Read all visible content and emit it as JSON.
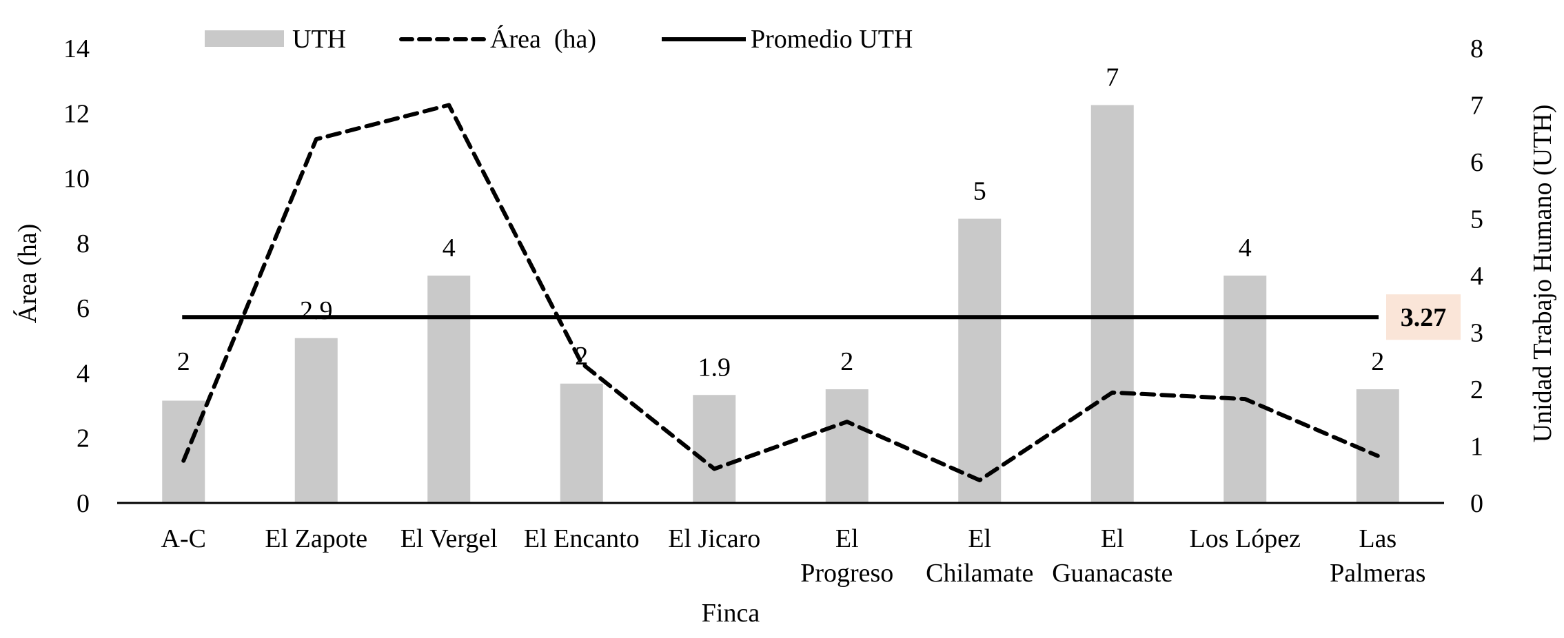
{
  "chart_data": {
    "type": "bar",
    "title": "",
    "xlabel": "Finca",
    "ylabel": "Área (ha)",
    "y2label": "Unidad Trabajo Humano (UTH)",
    "categories": [
      "A-C",
      "El Zapote",
      "El Vergel",
      "El Encanto",
      "El Jicaro",
      "El Progreso",
      "El Chilamate",
      "El Guanacaste",
      "Los López",
      "Las Palmeras"
    ],
    "category_lines": [
      [
        "A-C"
      ],
      [
        "El Zapote"
      ],
      [
        "El Vergel"
      ],
      [
        "El Encanto"
      ],
      [
        "El Jicaro"
      ],
      [
        "El",
        "Progreso"
      ],
      [
        "El",
        "Chilamate"
      ],
      [
        "El",
        "Guanacaste"
      ],
      [
        "Los López"
      ],
      [
        "Las",
        "Palmeras"
      ]
    ],
    "series": [
      {
        "name": "UTH",
        "type": "bar",
        "axis": "right",
        "color": "#c9c9c9",
        "values": [
          1.8,
          2.9,
          4,
          2.1,
          1.9,
          2,
          5,
          7,
          4,
          2
        ],
        "labels": [
          "2",
          "2.9",
          "4",
          "2",
          "1.9",
          "2",
          "5",
          "7",
          "4",
          "2"
        ]
      },
      {
        "name": "Área  (ha)",
        "type": "line",
        "style": "dashed",
        "axis": "left",
        "color": "#000000",
        "values": [
          1.3,
          11.2,
          12.25,
          4.3,
          1.05,
          2.5,
          0.7,
          3.4,
          3.2,
          1.45
        ]
      },
      {
        "name": "Promedio UTH",
        "type": "line",
        "style": "solid",
        "axis": "right",
        "color": "#000000",
        "value": 3.27,
        "label": "3.27",
        "label_bg": "#fae5d8"
      }
    ],
    "ylim": [
      0,
      14
    ],
    "yticks": [
      "0",
      "2",
      "4",
      "6",
      "8",
      "10",
      "12",
      "14"
    ],
    "y2lim": [
      0,
      8
    ],
    "y2ticks": [
      "0",
      "1",
      "2",
      "3",
      "4",
      "5",
      "6",
      "7",
      "8"
    ],
    "grid": false,
    "legend_position": "top"
  },
  "legend": {
    "items": [
      {
        "label": "UTH"
      },
      {
        "label": "Área  (ha)"
      },
      {
        "label": "Promedio UTH"
      }
    ]
  },
  "axes": {
    "left_title": "Área (ha)",
    "right_title": "Unidad Trabajo Humano (UTH)",
    "x_title": "Finca"
  },
  "average_label": "3.27"
}
